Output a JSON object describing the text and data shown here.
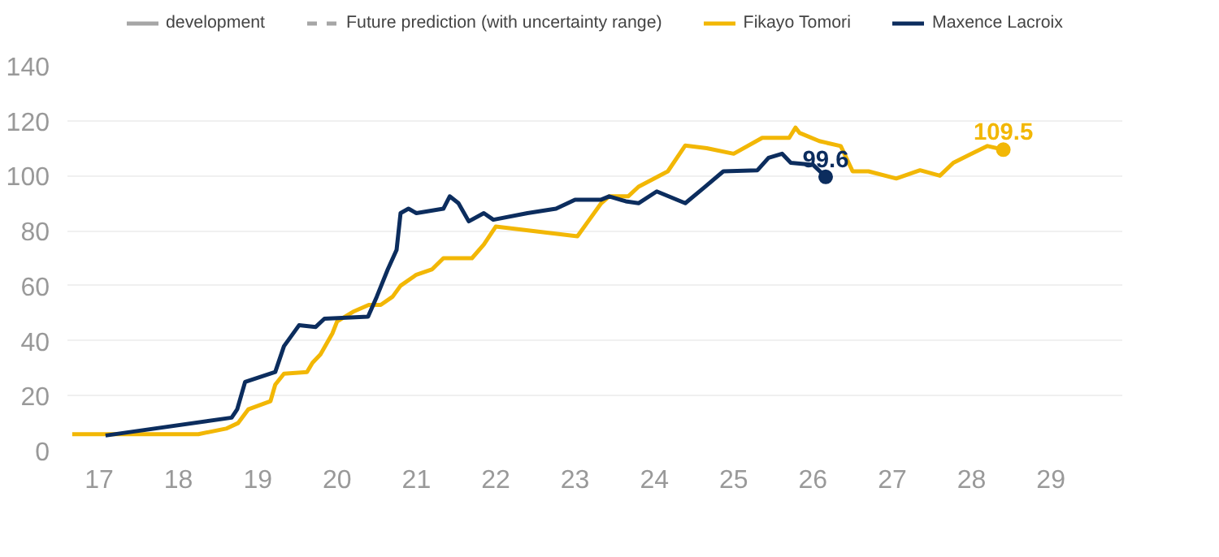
{
  "chart_data": {
    "type": "line",
    "xlim": [
      16.6,
      29.9
    ],
    "ylim": [
      0,
      140
    ],
    "xticks": [
      17,
      18,
      19,
      20,
      21,
      22,
      23,
      24,
      25,
      26,
      27,
      28,
      29
    ],
    "yticks": [
      0,
      20,
      40,
      60,
      80,
      100,
      120,
      140
    ],
    "grid": "y",
    "legend": "top",
    "line_style": "solid",
    "series": [
      {
        "name": "development",
        "color": "#a6a6a6"
      },
      {
        "name": "Future prediction (with uncertainty range)",
        "color": "#a6a6a6",
        "line_style": "dashed"
      },
      {
        "name": "Fikayo Tomori",
        "color": "#f2b705",
        "x": [
          16.66,
          18.25,
          18.6,
          18.75,
          18.88,
          19.16,
          19.22,
          19.33,
          19.62,
          19.69,
          19.79,
          19.94,
          20.0,
          20.2,
          20.4,
          20.55,
          20.7,
          20.8,
          21.0,
          21.2,
          21.34,
          21.7,
          21.85,
          22.0,
          23.03,
          23.18,
          23.33,
          23.43,
          23.67,
          23.8,
          24.17,
          24.39,
          24.66,
          25.0,
          25.36,
          25.7,
          25.78,
          25.83,
          26.08,
          26.35,
          26.5,
          26.7,
          27.05,
          27.35,
          27.6,
          27.77,
          27.98,
          28.2,
          28.4
        ],
        "values": [
          6,
          6,
          8,
          10,
          15,
          18,
          24,
          28,
          28.6,
          32,
          35,
          42.6,
          47,
          50.5,
          53,
          53,
          56,
          60,
          64,
          66,
          70,
          70,
          75,
          81.5,
          78,
          84,
          90,
          92.5,
          92.5,
          96,
          101.6,
          111,
          110,
          108,
          113.8,
          113.8,
          117.5,
          115.6,
          112.6,
          110.8,
          101.6,
          101.6,
          99,
          102,
          100,
          104.7,
          107.7,
          110.8,
          109.5
        ]
      },
      {
        "name": "Maxence Lacroix",
        "color": "#0c2d5e",
        "x": [
          17.08,
          18.67,
          18.74,
          18.84,
          19.22,
          19.33,
          19.52,
          19.73,
          19.84,
          20.39,
          20.5,
          20.64,
          20.75,
          20.8,
          20.9,
          21.0,
          21.34,
          21.42,
          21.53,
          21.66,
          21.85,
          21.97,
          22.4,
          22.76,
          23.0,
          23.33,
          23.43,
          23.64,
          23.8,
          24.03,
          24.39,
          24.62,
          24.87,
          25.3,
          25.44,
          25.61,
          25.72,
          26.0,
          26.16
        ],
        "values": [
          5.5,
          12,
          15,
          25,
          28.6,
          38,
          45.6,
          45,
          48,
          48.7,
          56,
          66,
          73,
          86.4,
          88,
          86.4,
          88,
          92.5,
          90,
          83.4,
          86.4,
          84,
          86.4,
          88,
          91.3,
          91.3,
          92.5,
          90.7,
          90,
          94.3,
          90,
          95.5,
          101.6,
          102,
          106.5,
          108,
          104.7,
          104,
          99.6
        ]
      }
    ],
    "annotations": [
      {
        "text": "109.5",
        "x": 28.4,
        "y": 109.5
      },
      {
        "text": "99.6",
        "x": 26.16,
        "y": 99.6
      }
    ]
  }
}
